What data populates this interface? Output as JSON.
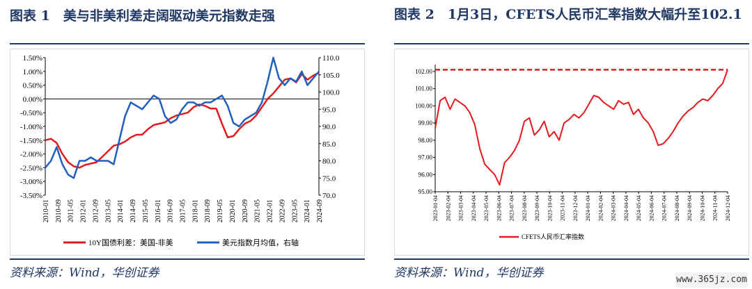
{
  "left": {
    "title": "图表 1　美与非美利差走阔驱动美元指数走强",
    "source": "资料来源：Wind，华创证券",
    "chart_data": {
      "type": "line",
      "x_labels": [
        "2010-01",
        "2010-09",
        "2011-05",
        "2012-01",
        "2012-09",
        "2013-05",
        "2014-01",
        "2014-09",
        "2015-05",
        "2016-01",
        "2016-09",
        "2017-05",
        "2018-01",
        "2018-09",
        "2019-05",
        "2020-01",
        "2020-09",
        "2021-05",
        "2022-01",
        "2022-09",
        "2023-05",
        "2024-01",
        "2024-09"
      ],
      "y_left_ticks": [
        "1.50%",
        "1.00%",
        "0.50%",
        "0.00%",
        "-0.50%",
        "-1.00%",
        "-1.50%",
        "-2.00%",
        "-2.50%",
        "-3.00%",
        "-3.50%"
      ],
      "y_left_lim": [
        -3.5,
        1.5
      ],
      "y_right_ticks": [
        "110.0",
        "105.0",
        "100.0",
        "95.0",
        "90.0",
        "85.0",
        "80.0",
        "75.0",
        "70.0"
      ],
      "y_right_lim": [
        70,
        110
      ],
      "legend_position": "bottom",
      "series": [
        {
          "name": "10Y国债利差：美国-非美",
          "axis": "left",
          "color": "#e31a1c",
          "values": [
            -1.5,
            -1.45,
            -1.6,
            -2.0,
            -2.3,
            -2.45,
            -2.5,
            -2.4,
            -2.35,
            -2.3,
            -2.1,
            -1.9,
            -1.7,
            -1.65,
            -1.55,
            -1.4,
            -1.3,
            -1.3,
            -1.1,
            -0.95,
            -0.9,
            -0.85,
            -0.7,
            -0.6,
            -0.55,
            -0.5,
            -0.3,
            -0.2,
            -0.25,
            -0.35,
            -0.35,
            -0.9,
            -1.4,
            -1.35,
            -1.1,
            -0.9,
            -0.8,
            -0.6,
            -0.3,
            0.0,
            0.2,
            0.45,
            0.7,
            0.75,
            0.6,
            0.9,
            0.7,
            0.85,
            0.95
          ]
        },
        {
          "name": "美元指数月均值，右轴",
          "axis": "right",
          "color": "#1f5fbf",
          "values": [
            78,
            80,
            84,
            79,
            76,
            75,
            80,
            80,
            81,
            80,
            80,
            80,
            79,
            86,
            93,
            97,
            96,
            95,
            97,
            99,
            98,
            93,
            91,
            92,
            95,
            97,
            97,
            96,
            97,
            97,
            98,
            99,
            96,
            91,
            90,
            92,
            93,
            94,
            97,
            103,
            110,
            104,
            102,
            104,
            103,
            106,
            102,
            104,
            106
          ]
        }
      ]
    }
  },
  "right": {
    "title": "图表 2　1月3日，CFETS人民币汇率指数大幅升至102.1",
    "source": "资料来源：Wind，华创证券",
    "chart_data": {
      "type": "line",
      "x_labels": [
        "2023-01-04",
        "2023-02-04",
        "2023-03-04",
        "2023-04-04",
        "2023-05-04",
        "2023-06-04",
        "2023-07-04",
        "2023-08-04",
        "2023-09-04",
        "2023-10-04",
        "2023-11-04",
        "2023-12-04",
        "2024-01-04",
        "2024-02-04",
        "2024-03-04",
        "2024-04-04",
        "2024-05-04",
        "2024-06-04",
        "2024-07-04",
        "2024-08-04",
        "2024-09-04",
        "2024-10-04",
        "2024-11-04",
        "2024-12-04"
      ],
      "y_ticks": [
        "102.00",
        "101.00",
        "100.00",
        "99.00",
        "98.00",
        "97.00",
        "96.00",
        "95.00"
      ],
      "y_lim": [
        95,
        102.4
      ],
      "reference_line": 102.1,
      "legend_position": "bottom",
      "series": [
        {
          "name": "CFETS人民币汇率指数",
          "color": "#e31a1c",
          "values": [
            98.7,
            100.3,
            100.5,
            99.8,
            100.4,
            100.2,
            100.0,
            99.6,
            98.9,
            97.5,
            96.6,
            96.3,
            96.0,
            95.4,
            96.7,
            97.0,
            97.4,
            98.0,
            99.1,
            99.3,
            98.3,
            98.6,
            99.1,
            98.2,
            98.5,
            98.0,
            99.0,
            99.2,
            99.5,
            99.3,
            99.6,
            100.1,
            100.6,
            100.5,
            100.2,
            100.0,
            99.8,
            100.3,
            100.1,
            100.2,
            99.5,
            99.8,
            99.3,
            99.0,
            98.5,
            97.7,
            97.8,
            98.1,
            98.5,
            99.0,
            99.4,
            99.7,
            99.9,
            100.2,
            100.4,
            100.3,
            100.6,
            101.0,
            101.3,
            102.1
          ]
        }
      ]
    }
  },
  "watermark": "www.365jz.com"
}
